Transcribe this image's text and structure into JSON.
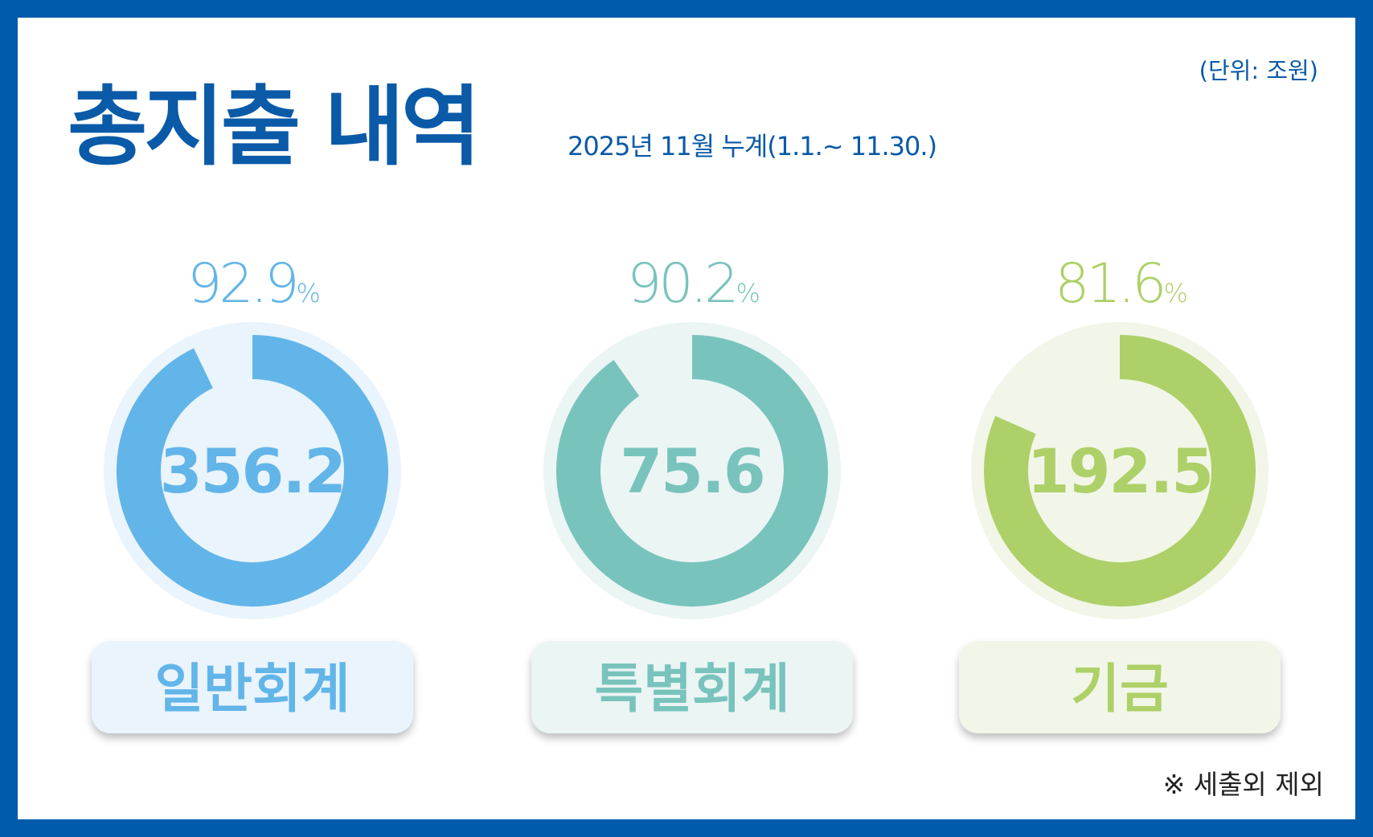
{
  "title": "총지출 내역",
  "subtitle": "2025년 11월 누계(1.1.~ 11.30.)",
  "unit_note": "(단위: 조원)",
  "footnote": "※ 세출외 제외",
  "chart_data": [
    {
      "type": "donut",
      "title": "일반회계",
      "values": [
        92.9
      ],
      "unit": "%",
      "center_label": 356.2,
      "color": "#62b5e8",
      "track_color": "#eaf4fc",
      "label_bg": "#eaf4fc"
    },
    {
      "type": "donut",
      "title": "특별회계",
      "values": [
        90.2
      ],
      "unit": "%",
      "center_label": 75.6,
      "color": "#79c3bd",
      "track_color": "#ebf5f4",
      "label_bg": "#ebf5f4"
    },
    {
      "type": "donut",
      "title": "기금",
      "values": [
        81.6
      ],
      "unit": "%",
      "center_label": 192.5,
      "color": "#aed068",
      "track_color": "#f1f6e8",
      "label_bg": "#f1f6e8"
    }
  ]
}
